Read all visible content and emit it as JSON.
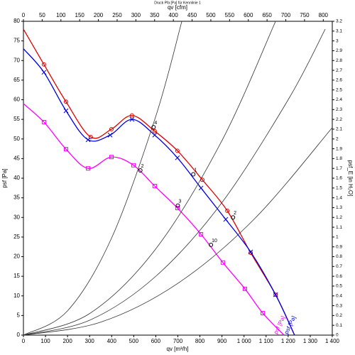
{
  "chart_data": {
    "type": "line",
    "title": "Druck Pfa [Pa] für Kennlinie 1",
    "x_label": "qv [m³/h]",
    "x2_label": "qv [cfm]",
    "y_label": "psf [Pa]",
    "y2_label": "psf_E [in H₂O]",
    "xlim": [
      0,
      1400
    ],
    "xticks": [
      0,
      100,
      200,
      300,
      400,
      500,
      600,
      700,
      800,
      900,
      {
        "value": 1000,
        "label": "1 000"
      },
      {
        "value": 1100,
        "label": "1 100"
      },
      {
        "value": 1200,
        "label": "1 200"
      },
      {
        "value": 1300,
        "label": "1 300"
      },
      {
        "value": 1400,
        "label": "1 400"
      }
    ],
    "x2lim": [
      0,
      824
    ],
    "x2ticks": [
      0,
      50,
      100,
      150,
      200,
      250,
      300,
      350,
      400,
      450,
      500,
      550,
      600,
      650,
      700,
      750,
      800
    ],
    "ylim": [
      0,
      80
    ],
    "yticks": [
      0,
      5,
      10,
      15,
      20,
      25,
      30,
      35,
      40,
      45,
      50,
      55,
      60,
      65,
      70,
      75,
      80
    ],
    "y2lim": [
      0,
      3.2
    ],
    "y2ticks": [
      0,
      0.1,
      0.2,
      0.3,
      0.4,
      0.5,
      0.6,
      0.7,
      0.8,
      0.9,
      1,
      1.1,
      1.2,
      1.3,
      1.4,
      1.5,
      1.6,
      1.7,
      1.8,
      1.9,
      2,
      2.1,
      2.2,
      2.3,
      2.4,
      2.5,
      2.6,
      2.7,
      2.8,
      2.9,
      3,
      3.1,
      3.2
    ],
    "series": [
      {
        "color": "#e00000",
        "marker": "circle",
        "x": [
          0,
          93,
          193,
          305,
          399,
          492,
          595,
          698,
          811,
          924,
          1030,
          1143,
          1229
        ],
        "values": [
          78,
          69,
          59.5,
          50.5,
          52.5,
          56,
          52,
          47,
          39.6,
          31.7,
          21,
          10.3,
          0
        ]
      },
      {
        "name": "psf [Pa]",
        "color": "#0000e0",
        "marker": "cross",
        "x": [
          0,
          93,
          193,
          293,
          393,
          492,
          595,
          698,
          805,
          917,
          1030,
          1143,
          1229
        ],
        "values": [
          73,
          67,
          57.2,
          49.8,
          51,
          55,
          51,
          45.2,
          37.5,
          29.5,
          21.2,
          10.3,
          0
        ]
      },
      {
        "name": "psf [Pa]",
        "color": "#ff00ff",
        "marker": "square",
        "x": [
          0,
          93,
          193,
          293,
          399,
          499,
          595,
          698,
          805,
          904,
          1004,
          1085,
          1181
        ],
        "values": [
          59,
          54.3,
          47.4,
          42.5,
          45.4,
          43.3,
          38,
          32.4,
          25.7,
          18.5,
          11.8,
          5.6,
          0
        ]
      },
      {
        "color": "#333333",
        "x": [
          0,
          200,
          400,
          600,
          718
        ],
        "values": [
          0,
          6.2,
          24.8,
          55.8,
          80
        ]
      },
      {
        "color": "#333333",
        "x": [
          0,
          300,
          600,
          900,
          1143
        ],
        "values": [
          0,
          5.5,
          22,
          49.6,
          80
        ]
      },
      {
        "color": "#333333",
        "x": [
          0,
          300,
          600,
          900,
          1200,
          1368
        ],
        "values": [
          0,
          3.8,
          15,
          33.8,
          60,
          78
        ]
      },
      {
        "color": "#333333",
        "x": [
          0,
          350,
          700,
          1050,
          1400
        ],
        "values": [
          0,
          3.3,
          13.2,
          29.8,
          52.9
        ]
      }
    ],
    "annotations": [
      {
        "text": "4",
        "x": 590,
        "y": 53
      },
      {
        "text": "2",
        "x": 530,
        "y": 42
      },
      {
        "text": "1",
        "x": 770,
        "y": 41
      },
      {
        "text": "3",
        "x": 700,
        "y": 33
      },
      {
        "text": "2",
        "x": 950,
        "y": 30
      },
      {
        "text": "10",
        "x": 850,
        "y": 23
      }
    ]
  }
}
